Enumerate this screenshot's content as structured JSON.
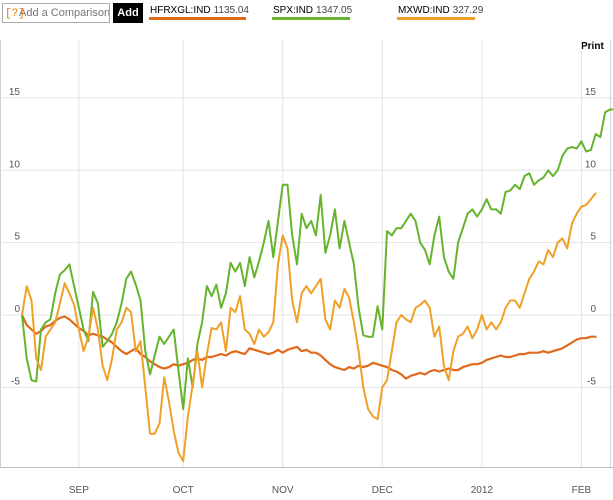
{
  "toolbar": {
    "help_label": "[?]",
    "compare_placeholder": "Add a Comparison",
    "add_label": "Add",
    "print_label": "Print"
  },
  "chart_data": {
    "type": "line",
    "x_unit": "trading-day index (Aug 2011 – Feb 2012)",
    "x_tick_labels": [
      {
        "x": 12,
        "label": "SEP"
      },
      {
        "x": 34,
        "label": "OCT"
      },
      {
        "x": 55,
        "label": "NOV"
      },
      {
        "x": 76,
        "label": "DEC"
      },
      {
        "x": 97,
        "label": "2012"
      },
      {
        "x": 118,
        "label": "FEB"
      }
    ],
    "y_ticks": [
      15,
      10,
      5,
      0,
      -5
    ],
    "ylim": [
      -10.5,
      19
    ],
    "xlim": [
      0,
      121.5
    ],
    "grid": true,
    "legend_position": "top",
    "series": [
      {
        "name": "HFRXGL:IND",
        "last_value": "1135.04",
        "color": "#e06a1b",
        "values": [
          0.0,
          -0.7,
          -1.0,
          -1.3,
          -1.1,
          -0.8,
          -0.7,
          -0.4,
          -0.2,
          -0.1,
          -0.3,
          -0.6,
          -0.9,
          -1.1,
          -1.4,
          -1.3,
          -1.4,
          -1.5,
          -1.7,
          -1.9,
          -2.2,
          -2.5,
          -2.7,
          -2.5,
          -2.3,
          -2.7,
          -2.9,
          -3.2,
          -3.4,
          -3.6,
          -3.7,
          -3.6,
          -3.4,
          -3.5,
          -3.4,
          -3.3,
          -3.1,
          -3.0,
          -3.1,
          -2.9,
          -2.9,
          -2.8,
          -2.7,
          -2.8,
          -2.6,
          -2.5,
          -2.6,
          -2.7,
          -2.3,
          -2.4,
          -2.5,
          -2.6,
          -2.7,
          -2.6,
          -2.4,
          -2.6,
          -2.4,
          -2.3,
          -2.2,
          -2.5,
          -2.4,
          -2.6,
          -2.6,
          -2.8,
          -3.1,
          -3.4,
          -3.6,
          -3.7,
          -3.8,
          -3.6,
          -3.7,
          -3.5,
          -3.6,
          -3.5,
          -3.3,
          -3.4,
          -3.5,
          -3.6,
          -3.8,
          -3.9,
          -4.1,
          -4.4,
          -4.2,
          -4.1,
          -4.0,
          -4.1,
          -3.9,
          -3.8,
          -3.9,
          -3.8,
          -3.7,
          -3.8,
          -3.8,
          -3.6,
          -3.5,
          -3.4,
          -3.4,
          -3.3,
          -3.1,
          -3.0,
          -2.9,
          -2.8,
          -2.9,
          -2.9,
          -2.8,
          -2.7,
          -2.7,
          -2.6,
          -2.6,
          -2.6,
          -2.5,
          -2.6,
          -2.5,
          -2.4,
          -2.3,
          -2.1,
          -1.9,
          -1.7,
          -1.6,
          -1.6,
          -1.5,
          -1.5
        ]
      },
      {
        "name": "SPX:IND",
        "last_value": "1347.05",
        "color": "#66b32e",
        "values": [
          0.0,
          -3.0,
          -4.5,
          -4.6,
          -1.0,
          -0.5,
          -0.3,
          1.5,
          2.8,
          3.1,
          3.5,
          2.0,
          0.5,
          -1.0,
          -1.8,
          1.6,
          0.8,
          -2.2,
          -1.8,
          -1.3,
          -0.5,
          0.8,
          2.5,
          3.0,
          2.1,
          1.0,
          -2.5,
          -4.1,
          -2.8,
          -1.5,
          -2.0,
          -1.5,
          -1.0,
          -3.8,
          -6.5,
          -3.0,
          -5.0,
          -2.0,
          -0.5,
          2.0,
          1.3,
          2.1,
          0.5,
          1.5,
          3.6,
          3.0,
          3.6,
          2.0,
          4.0,
          2.6,
          3.7,
          5.0,
          6.5,
          4.0,
          6.5,
          9.0,
          9.0,
          5.5,
          3.5,
          7.0,
          6.0,
          6.5,
          5.5,
          8.3,
          4.3,
          5.5,
          7.3,
          4.6,
          6.5,
          5.0,
          3.5,
          0.5,
          -1.4,
          -1.5,
          -1.5,
          0.6,
          -1.0,
          5.8,
          5.5,
          6.0,
          6.0,
          6.5,
          7.0,
          6.5,
          5.0,
          4.5,
          3.5,
          5.5,
          6.8,
          4.0,
          3.0,
          2.5,
          5.0,
          6.0,
          7.0,
          7.3,
          6.8,
          7.3,
          8.0,
          7.3,
          7.3,
          7.0,
          8.5,
          8.6,
          9.0,
          8.7,
          9.6,
          9.8,
          9.0,
          9.3,
          9.5,
          10.0,
          9.6,
          10.0,
          11.0,
          11.5,
          11.6,
          11.5,
          12.0,
          11.3,
          11.4,
          12.5,
          12.3,
          14.0,
          14.2,
          14.2
        ]
      },
      {
        "name": "MXWD:IND",
        "last_value": "327.29",
        "color": "#f0a028",
        "values": [
          0.0,
          2.0,
          1.0,
          -3.0,
          -3.8,
          -1.5,
          -1.0,
          -0.5,
          0.8,
          2.2,
          1.5,
          0.7,
          -1.0,
          -2.5,
          -1.5,
          0.5,
          -1.0,
          -3.5,
          -4.5,
          -3.0,
          -1.0,
          -0.5,
          0.5,
          0.2,
          -2.5,
          -1.8,
          -5.0,
          -8.2,
          -8.2,
          -7.5,
          -4.3,
          -6.0,
          -8.0,
          -9.5,
          -10.1,
          -7.0,
          -4.8,
          -2.5,
          -5.0,
          -2.7,
          -0.9,
          -1.0,
          -0.5,
          -2.5,
          0.5,
          0.2,
          1.3,
          -1.0,
          -1.3,
          -2.0,
          -1.0,
          -1.5,
          -1.2,
          -0.5,
          3.5,
          5.5,
          4.6,
          1.0,
          -0.5,
          1.5,
          2.0,
          1.5,
          2.0,
          2.5,
          -0.3,
          -1.0,
          1.0,
          0.5,
          1.8,
          1.2,
          -0.5,
          -2.5,
          -5.0,
          -6.5,
          -7.0,
          -7.2,
          -5.0,
          -4.5,
          -2.5,
          -0.5,
          0.0,
          -0.3,
          -0.5,
          0.5,
          0.7,
          1.0,
          0.5,
          -1.5,
          -0.8,
          -3.5,
          -4.5,
          -2.5,
          -1.5,
          -1.3,
          -0.8,
          -1.6,
          -1.0,
          0.0,
          -1.0,
          -0.5,
          -1.0,
          -0.5,
          0.5,
          1.0,
          1.0,
          0.5,
          1.5,
          2.5,
          3.0,
          3.7,
          3.5,
          4.5,
          4.0,
          5.0,
          5.3,
          4.6,
          6.3,
          7.0,
          7.5,
          7.6,
          8.0,
          8.4
        ]
      }
    ]
  }
}
